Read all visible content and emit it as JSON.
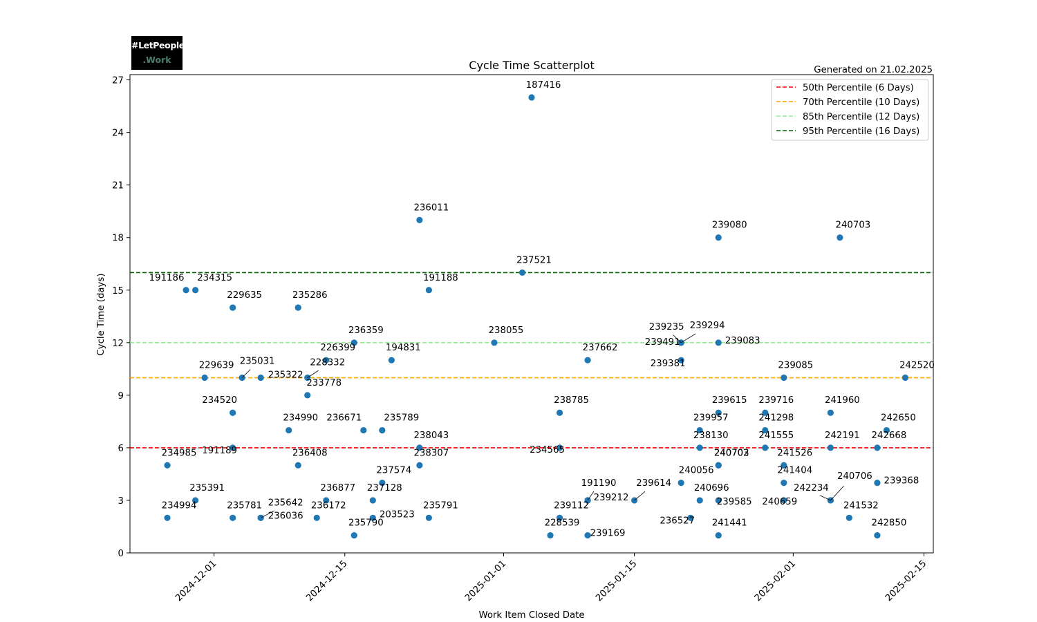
{
  "logo": {
    "line1": "#LetPeople",
    "line2": ".Work"
  },
  "generated": "Generated on 21.02.2025",
  "chart_data": {
    "type": "scatter",
    "title": "Cycle Time Scatterplot",
    "xlabel": "Work Item Closed Date",
    "ylabel": "Cycle Time (days)",
    "x_is_date": true,
    "xlim": [
      "2024-11-22",
      "2025-02-16"
    ],
    "ylim": [
      0,
      27.3
    ],
    "xticks": [
      "2024-12-01",
      "2024-12-15",
      "2025-01-01",
      "2025-01-15",
      "2025-02-01",
      "2025-02-15"
    ],
    "yticks": [
      0,
      3,
      6,
      9,
      12,
      15,
      18,
      21,
      24,
      27
    ],
    "grid": false,
    "legend_position": "top-right",
    "point_color": "#1f77b4",
    "percentiles": [
      {
        "label": "50th Percentile (6 Days)",
        "value": 6,
        "color": "#ff0000"
      },
      {
        "label": "70th Percentile (10 Days)",
        "value": 10,
        "color": "#ffa500"
      },
      {
        "label": "85th Percentile (12 Days)",
        "value": 12,
        "color": "#90ee90"
      },
      {
        "label": "95th Percentile (16 Days)",
        "value": 16,
        "color": "#006400"
      }
    ],
    "points": [
      {
        "x": "2024-11-26",
        "y": 5,
        "label": "234985"
      },
      {
        "x": "2024-11-26",
        "y": 2,
        "label": "234994"
      },
      {
        "x": "2024-11-28",
        "y": 15,
        "label": "191186"
      },
      {
        "x": "2024-11-29",
        "y": 15,
        "label": "234315"
      },
      {
        "x": "2024-11-29",
        "y": 3,
        "label": "235391"
      },
      {
        "x": "2024-11-30",
        "y": 10,
        "label": "229639"
      },
      {
        "x": "2024-12-03",
        "y": 14,
        "label": "229635"
      },
      {
        "x": "2024-12-03",
        "y": 8,
        "label": "234520"
      },
      {
        "x": "2024-12-03",
        "y": 6,
        "label": "191189"
      },
      {
        "x": "2024-12-03",
        "y": 2,
        "label": "235781"
      },
      {
        "x": "2024-12-04",
        "y": 10,
        "label": "235031"
      },
      {
        "x": "2024-12-06",
        "y": 10,
        "label": "235322"
      },
      {
        "x": "2024-12-06",
        "y": 2,
        "label": "235642"
      },
      {
        "x": "2024-12-06",
        "y": 2,
        "label": "236036"
      },
      {
        "x": "2024-12-09",
        "y": 7,
        "label": "234990"
      },
      {
        "x": "2024-12-10",
        "y": 14,
        "label": "235286"
      },
      {
        "x": "2024-12-10",
        "y": 5,
        "label": "236408"
      },
      {
        "x": "2024-12-11",
        "y": 10,
        "label": "228332"
      },
      {
        "x": "2024-12-11",
        "y": 9,
        "label": "233778"
      },
      {
        "x": "2024-12-12",
        "y": 2,
        "label": "236172"
      },
      {
        "x": "2024-12-13",
        "y": 11,
        "label": "226399"
      },
      {
        "x": "2024-12-13",
        "y": 3,
        "label": "236877"
      },
      {
        "x": "2024-12-16",
        "y": 12,
        "label": "236359"
      },
      {
        "x": "2024-12-16",
        "y": 1,
        "label": "235790"
      },
      {
        "x": "2024-12-17",
        "y": 7,
        "label": "236671"
      },
      {
        "x": "2024-12-18",
        "y": 3,
        "label": "237128"
      },
      {
        "x": "2024-12-18",
        "y": 2,
        "label": "203523"
      },
      {
        "x": "2024-12-19",
        "y": 7,
        "label": "235789"
      },
      {
        "x": "2024-12-19",
        "y": 4,
        "label": "237574"
      },
      {
        "x": "2024-12-20",
        "y": 11,
        "label": "194831"
      },
      {
        "x": "2024-12-23",
        "y": 19,
        "label": "236011"
      },
      {
        "x": "2024-12-23",
        "y": 6,
        "label": "238043"
      },
      {
        "x": "2024-12-23",
        "y": 5,
        "label": "238307"
      },
      {
        "x": "2024-12-24",
        "y": 15,
        "label": "191188"
      },
      {
        "x": "2024-12-24",
        "y": 2,
        "label": "235791"
      },
      {
        "x": "2024-12-31",
        "y": 12,
        "label": "238055"
      },
      {
        "x": "2025-01-03",
        "y": 16,
        "label": "237521"
      },
      {
        "x": "2025-01-04",
        "y": 26,
        "label": "187416"
      },
      {
        "x": "2025-01-06",
        "y": 1,
        "label": "228539"
      },
      {
        "x": "2025-01-07",
        "y": 8,
        "label": "238785"
      },
      {
        "x": "2025-01-07",
        "y": 6,
        "label": "234565"
      },
      {
        "x": "2025-01-07",
        "y": 2,
        "label": "239112"
      },
      {
        "x": "2025-01-10",
        "y": 11,
        "label": "237662"
      },
      {
        "x": "2025-01-10",
        "y": 3,
        "label": "191190"
      },
      {
        "x": "2025-01-10",
        "y": 3,
        "label": "239212"
      },
      {
        "x": "2025-01-10",
        "y": 1,
        "label": "239169"
      },
      {
        "x": "2025-01-15",
        "y": 3,
        "label": "239614"
      },
      {
        "x": "2025-01-20",
        "y": 12,
        "label": "239235"
      },
      {
        "x": "2025-01-20",
        "y": 12,
        "label": "239294"
      },
      {
        "x": "2025-01-20",
        "y": 12,
        "label": "239491"
      },
      {
        "x": "2025-01-20",
        "y": 11,
        "label": "239381"
      },
      {
        "x": "2025-01-20",
        "y": 4,
        "label": "240056"
      },
      {
        "x": "2025-01-21",
        "y": 2,
        "label": "236527"
      },
      {
        "x": "2025-01-22",
        "y": 7,
        "label": "239957"
      },
      {
        "x": "2025-01-22",
        "y": 6,
        "label": "238130"
      },
      {
        "x": "2025-01-22",
        "y": 3,
        "label": "240696"
      },
      {
        "x": "2025-01-24",
        "y": 18,
        "label": "239080"
      },
      {
        "x": "2025-01-24",
        "y": 12,
        "label": "239083"
      },
      {
        "x": "2025-01-24",
        "y": 8,
        "label": "239615"
      },
      {
        "x": "2025-01-24",
        "y": 5,
        "label": "240702"
      },
      {
        "x": "2025-01-24",
        "y": 5,
        "label": "240703"
      },
      {
        "x": "2025-01-24",
        "y": 3,
        "label": "239585"
      },
      {
        "x": "2025-01-24",
        "y": 1,
        "label": "241441"
      },
      {
        "x": "2025-01-29",
        "y": 8,
        "label": "239716"
      },
      {
        "x": "2025-01-29",
        "y": 7,
        "label": "241298"
      },
      {
        "x": "2025-01-29",
        "y": 6,
        "label": "241555"
      },
      {
        "x": "2025-01-31",
        "y": 10,
        "label": "239085"
      },
      {
        "x": "2025-01-31",
        "y": 5,
        "label": "241526"
      },
      {
        "x": "2025-01-31",
        "y": 4,
        "label": "241404"
      },
      {
        "x": "2025-01-31",
        "y": 3,
        "label": "240659"
      },
      {
        "x": "2025-02-05",
        "y": 8,
        "label": "241960"
      },
      {
        "x": "2025-02-05",
        "y": 6,
        "label": "242191"
      },
      {
        "x": "2025-02-05",
        "y": 3,
        "label": "242234"
      },
      {
        "x": "2025-02-05",
        "y": 3,
        "label": "240706"
      },
      {
        "x": "2025-02-06",
        "y": 18,
        "label": "240703"
      },
      {
        "x": "2025-02-07",
        "y": 2,
        "label": "241532"
      },
      {
        "x": "2025-02-10",
        "y": 6,
        "label": "242668"
      },
      {
        "x": "2025-02-10",
        "y": 4,
        "label": "239368"
      },
      {
        "x": "2025-02-10",
        "y": 1,
        "label": "242850"
      },
      {
        "x": "2025-02-11",
        "y": 7,
        "label": "242650"
      },
      {
        "x": "2025-02-13",
        "y": 10,
        "label": "242520"
      }
    ]
  }
}
